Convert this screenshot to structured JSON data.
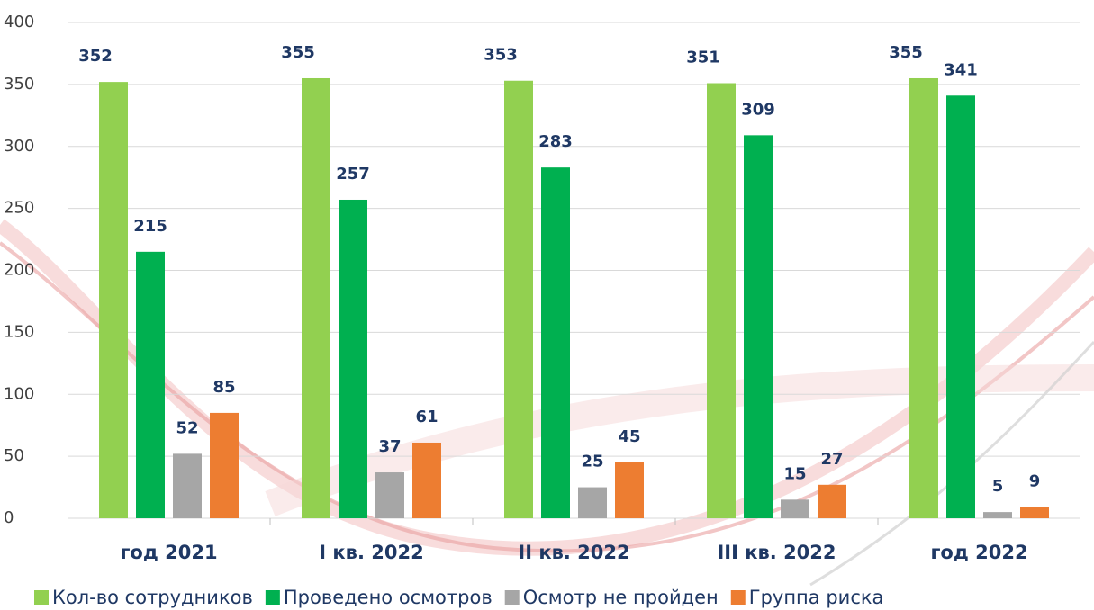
{
  "chart_data": {
    "type": "bar",
    "categories": [
      "год 2021",
      "I кв. 2022",
      "II кв. 2022",
      "III кв. 2022",
      "год 2022"
    ],
    "series": [
      {
        "name": "Кол-во сотрудников",
        "color": "#92d050",
        "values": [
          352,
          355,
          353,
          351,
          355
        ]
      },
      {
        "name": "Проведено осмотров",
        "color": "#00b050",
        "values": [
          215,
          257,
          283,
          309,
          341
        ]
      },
      {
        "name": "Осмотр не пройден",
        "color": "#a6a6a6",
        "values": [
          52,
          37,
          25,
          15,
          5
        ]
      },
      {
        "name": "Группа риска",
        "color": "#ed7d31",
        "values": [
          85,
          61,
          45,
          27,
          9
        ]
      }
    ],
    "ylim": [
      0,
      400
    ],
    "yticks": [
      0,
      50,
      100,
      150,
      200,
      250,
      300,
      350,
      400
    ],
    "grid": true
  }
}
